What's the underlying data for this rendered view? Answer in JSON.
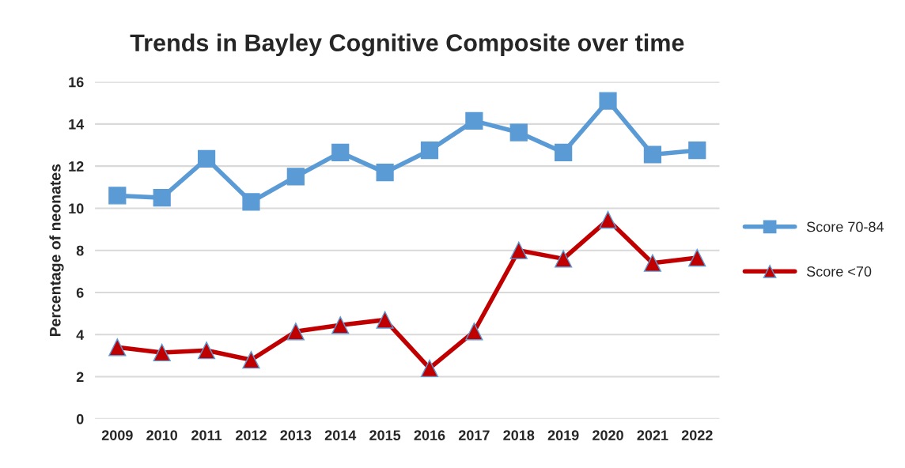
{
  "chart_data": {
    "type": "line",
    "title": "Trends in Bayley Cognitive Composite over time",
    "ylabel": "Percentage of neonates",
    "categories": [
      "2009",
      "2010",
      "2011",
      "2012",
      "2013",
      "2014",
      "2015",
      "2016",
      "2017",
      "2018",
      "2019",
      "2020",
      "2021",
      "2022"
    ],
    "series": [
      {
        "name": "Score 70-84",
        "color": "#5b9bd5",
        "marker": "square",
        "values": [
          10.6,
          10.5,
          12.35,
          10.3,
          11.5,
          12.65,
          11.7,
          12.75,
          14.15,
          13.6,
          12.65,
          15.1,
          12.55,
          12.75
        ]
      },
      {
        "name": "Score <70",
        "color": "#c00000",
        "marker": "triangle",
        "values": [
          3.4,
          3.15,
          3.25,
          2.8,
          4.15,
          4.45,
          4.7,
          2.4,
          4.15,
          8.0,
          7.6,
          9.45,
          7.4,
          7.65
        ]
      }
    ],
    "ylim": [
      0,
      16
    ],
    "yticks": [
      0,
      2,
      4,
      6,
      8,
      10,
      12,
      14,
      16
    ],
    "grid": "y",
    "legend": "right"
  }
}
